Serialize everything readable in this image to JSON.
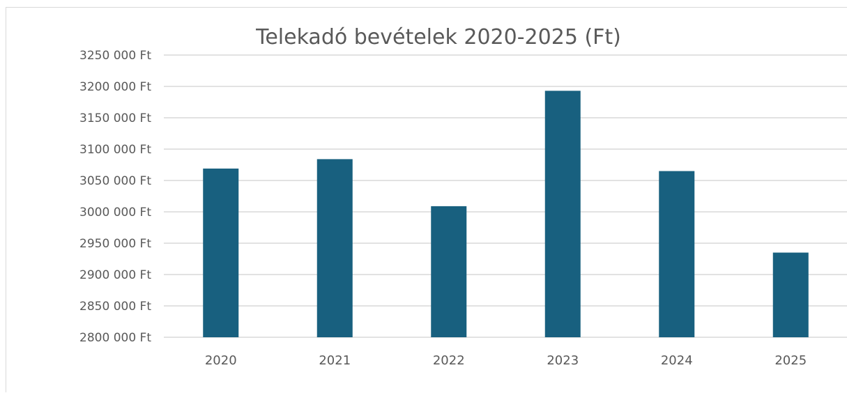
{
  "chart_data": {
    "type": "bar",
    "title": "Telekadó bevételek 2020-2025 (Ft)",
    "xlabel": "",
    "ylabel": "",
    "categories": [
      "2020",
      "2021",
      "2022",
      "2023",
      "2024",
      "2025"
    ],
    "values": [
      3069000,
      3084000,
      3009000,
      3193000,
      3065000,
      2935000
    ],
    "ylim": [
      2800000,
      3250000
    ],
    "ytick_step": 50000,
    "ytick_labels": [
      "2800 000 Ft",
      "2850 000 Ft",
      "2900 000 Ft",
      "2950 000 Ft",
      "3000 000 Ft",
      "3050 000 Ft",
      "3100 000 Ft",
      "3150 000 Ft",
      "3200 000 Ft",
      "3250 000 Ft"
    ],
    "grid": true,
    "legend": "none",
    "bar_color": "#18607f"
  }
}
